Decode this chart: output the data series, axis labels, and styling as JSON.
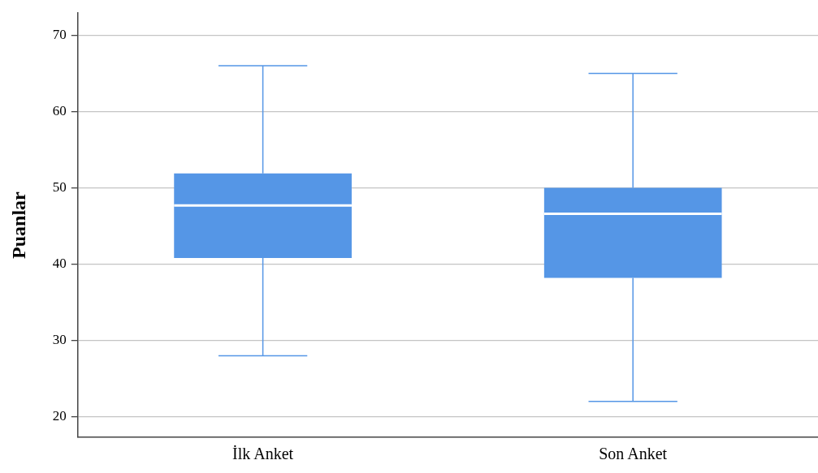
{
  "chart_data": {
    "type": "box",
    "ylabel": "Puanlar",
    "categories": [
      "İlk Anket",
      "Son Anket"
    ],
    "boxes": [
      {
        "low": 28,
        "q1": 40.8,
        "median": 47.7,
        "q3": 51.9,
        "high": 66
      },
      {
        "low": 22,
        "q1": 38.2,
        "median": 46.6,
        "q3": 50,
        "high": 65
      }
    ],
    "color": "#5596e6",
    "ylim": [
      17.3,
      72.9
    ],
    "yticks": [
      20,
      30,
      40,
      50,
      60,
      70
    ],
    "grid": "y",
    "legend": false
  }
}
